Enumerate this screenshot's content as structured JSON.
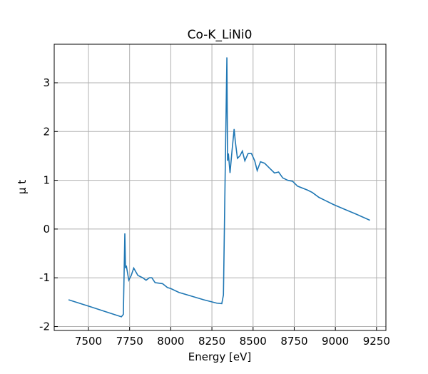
{
  "chart_data": {
    "type": "line",
    "title": "Co-K_LiNi0",
    "x_label": "Energy [eV]",
    "y_label": "μ t",
    "xlim": [
      7292,
      9307
    ],
    "ylim": [
      -2.08,
      3.79
    ],
    "xticks": [
      7500,
      7750,
      8000,
      8250,
      8500,
      8750,
      9000,
      9250
    ],
    "yticks": [
      -2,
      -1,
      0,
      1,
      2,
      3
    ],
    "grid": true,
    "series": [
      {
        "name": "Co-K_LiNi0",
        "color": "#1f77b4",
        "x": [
          7379,
          7500,
          7600,
          7682,
          7700,
          7712,
          7721,
          7725,
          7730,
          7735,
          7745,
          7760,
          7775,
          7800,
          7830,
          7850,
          7870,
          7885,
          7905,
          7950,
          7980,
          8000,
          8050,
          8100,
          8200,
          8280,
          8310,
          8320,
          8330,
          8341,
          8345,
          8350,
          8360,
          8372,
          8385,
          8392,
          8405,
          8420,
          8435,
          8450,
          8470,
          8490,
          8510,
          8525,
          8545,
          8570,
          8600,
          8630,
          8655,
          8680,
          8710,
          8740,
          8770,
          8830,
          8860,
          8900,
          8930,
          8990,
          9060,
          9130,
          9210
        ],
        "values": [
          -1.45,
          -1.58,
          -1.69,
          -1.78,
          -1.8,
          -1.75,
          -0.09,
          -0.8,
          -0.75,
          -0.85,
          -1.05,
          -0.95,
          -0.8,
          -0.95,
          -1.0,
          -1.05,
          -1.0,
          -1.0,
          -1.1,
          -1.12,
          -1.2,
          -1.22,
          -1.3,
          -1.35,
          -1.45,
          -1.52,
          -1.53,
          -1.35,
          1.0,
          3.52,
          1.4,
          1.55,
          1.15,
          1.6,
          2.05,
          1.8,
          1.45,
          1.5,
          1.6,
          1.4,
          1.55,
          1.55,
          1.4,
          1.2,
          1.38,
          1.35,
          1.25,
          1.15,
          1.17,
          1.05,
          1.0,
          0.98,
          0.88,
          0.8,
          0.75,
          0.65,
          0.6,
          0.5,
          0.4,
          0.3,
          0.18
        ]
      }
    ]
  }
}
